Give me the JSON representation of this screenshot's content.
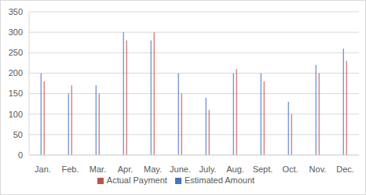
{
  "chart_data": {
    "type": "bar",
    "categories": [
      "Jan.",
      "Feb.",
      "Mar.",
      "Apr.",
      "May.",
      "June.",
      "July.",
      "Aug.",
      "Sept.",
      "Oct.",
      "Nov.",
      "Dec."
    ],
    "series": [
      {
        "name": "Estimated Amount",
        "color": "#4472c4",
        "values": [
          200,
          150,
          170,
          300,
          280,
          200,
          140,
          200,
          200,
          130,
          220,
          260
        ]
      },
      {
        "name": "Actual Payment",
        "color": "#c0504d",
        "values": [
          180,
          170,
          150,
          280,
          300,
          150,
          110,
          210,
          180,
          100,
          200,
          230
        ]
      }
    ],
    "ylim": [
      0,
      350
    ],
    "yticks": [
      0,
      50,
      100,
      150,
      200,
      250,
      300,
      350
    ],
    "grid": true,
    "legend": "bottom"
  }
}
